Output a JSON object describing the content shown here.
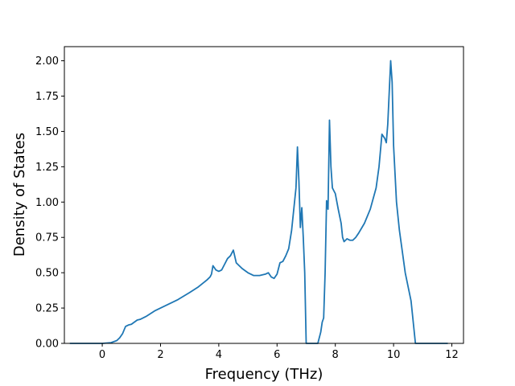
{
  "chart_data": {
    "type": "line",
    "title": "",
    "xlabel": "Frequency (THz)",
    "ylabel": "Density of States",
    "xlim": [
      -1.3,
      12.4
    ],
    "ylim": [
      0.0,
      2.1
    ],
    "xticks": [
      "0",
      "2",
      "4",
      "6",
      "8",
      "10",
      "12"
    ],
    "xtick_values": [
      0,
      2,
      4,
      6,
      8,
      10,
      12
    ],
    "yticks": [
      "0.00",
      "0.25",
      "0.50",
      "0.75",
      "1.00",
      "1.25",
      "1.50",
      "1.75",
      "2.00"
    ],
    "ytick_values": [
      0.0,
      0.25,
      0.5,
      0.75,
      1.0,
      1.25,
      1.5,
      1.75,
      2.0
    ],
    "grid": false,
    "line_color": "#1f77b4",
    "series": [
      {
        "x": [
          -1.1,
          -0.5,
          0.0,
          0.3,
          0.5,
          0.6,
          0.7,
          0.8,
          0.9,
          1.0,
          1.1,
          1.2,
          1.3,
          1.5,
          1.8,
          2.0,
          2.3,
          2.6,
          3.0,
          3.3,
          3.6,
          3.7,
          3.75,
          3.8,
          3.9,
          4.0,
          4.1,
          4.2,
          4.3,
          4.4,
          4.45,
          4.5,
          4.6,
          4.8,
          5.0,
          5.2,
          5.4,
          5.6,
          5.7,
          5.8,
          5.9,
          6.0,
          6.1,
          6.2,
          6.3,
          6.4,
          6.5,
          6.6,
          6.65,
          6.7,
          6.75,
          6.8,
          6.85,
          6.9,
          6.95,
          7.0,
          7.05,
          7.1,
          7.15,
          7.2,
          7.4,
          7.5,
          7.55,
          7.6,
          7.65,
          7.7,
          7.75,
          7.8,
          7.85,
          7.9,
          7.95,
          8.0,
          8.1,
          8.2,
          8.25,
          8.3,
          8.4,
          8.5,
          8.55,
          8.6,
          8.7,
          8.8,
          9.0,
          9.2,
          9.4,
          9.5,
          9.6,
          9.7,
          9.75,
          9.8,
          9.9,
          9.95,
          10.0,
          10.05,
          10.1,
          10.2,
          10.4,
          10.6,
          10.7,
          10.75,
          10.8,
          11.0,
          11.5,
          11.85
        ],
        "values": [
          0.0,
          0.0,
          0.0,
          0.005,
          0.02,
          0.04,
          0.07,
          0.12,
          0.13,
          0.135,
          0.15,
          0.165,
          0.17,
          0.19,
          0.23,
          0.25,
          0.28,
          0.31,
          0.36,
          0.4,
          0.45,
          0.47,
          0.49,
          0.55,
          0.52,
          0.51,
          0.52,
          0.56,
          0.6,
          0.62,
          0.64,
          0.66,
          0.57,
          0.53,
          0.5,
          0.48,
          0.48,
          0.49,
          0.5,
          0.47,
          0.46,
          0.49,
          0.57,
          0.58,
          0.62,
          0.67,
          0.8,
          1.0,
          1.1,
          1.39,
          1.15,
          0.82,
          0.96,
          0.75,
          0.5,
          0.0,
          0.0,
          0.0,
          0.0,
          0.0,
          0.0,
          0.08,
          0.15,
          0.18,
          0.5,
          1.01,
          0.95,
          1.58,
          1.25,
          1.1,
          1.08,
          1.06,
          0.95,
          0.85,
          0.75,
          0.72,
          0.74,
          0.73,
          0.73,
          0.73,
          0.75,
          0.78,
          0.85,
          0.95,
          1.1,
          1.25,
          1.48,
          1.45,
          1.42,
          1.55,
          2.0,
          1.85,
          1.4,
          1.2,
          1.0,
          0.8,
          0.5,
          0.3,
          0.1,
          0.0,
          0.0,
          0.0,
          0.0,
          0.0
        ]
      }
    ]
  }
}
